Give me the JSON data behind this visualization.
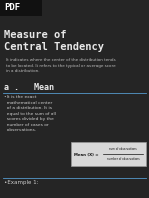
{
  "bg_color": "#252525",
  "header_bg": "#1a1a1a",
  "pdf_label": "PDF",
  "title_line1": "Measure of",
  "title_line2": "Central Tendency",
  "subtitle": "It indicates where the center of the distribution tends\nto be located. It refers to the typical or average score\nin a distribution.",
  "section_label": "a .   Mean",
  "bullet_text": "•It is the exact\n  mathematical center\n  of a distribution. It is\n  equal to the sum of all\n  scores divided by the\n  number of cases or\n  observations.",
  "formula_label": "Mean (X) =",
  "formula_num": "sum of observations",
  "formula_den": "number of observations",
  "example_label": "•Example 1:",
  "title_color": "#e8e8e8",
  "pdf_color": "#ffffff",
  "subtitle_color": "#bbbbbb",
  "section_color": "#e8e8e8",
  "bullet_color": "#cccccc",
  "formula_bg": "#d8d8d8",
  "formula_text_color": "#111111",
  "example_color": "#cccccc",
  "divider_color": "#5599cc",
  "header_box_color": "#111111"
}
